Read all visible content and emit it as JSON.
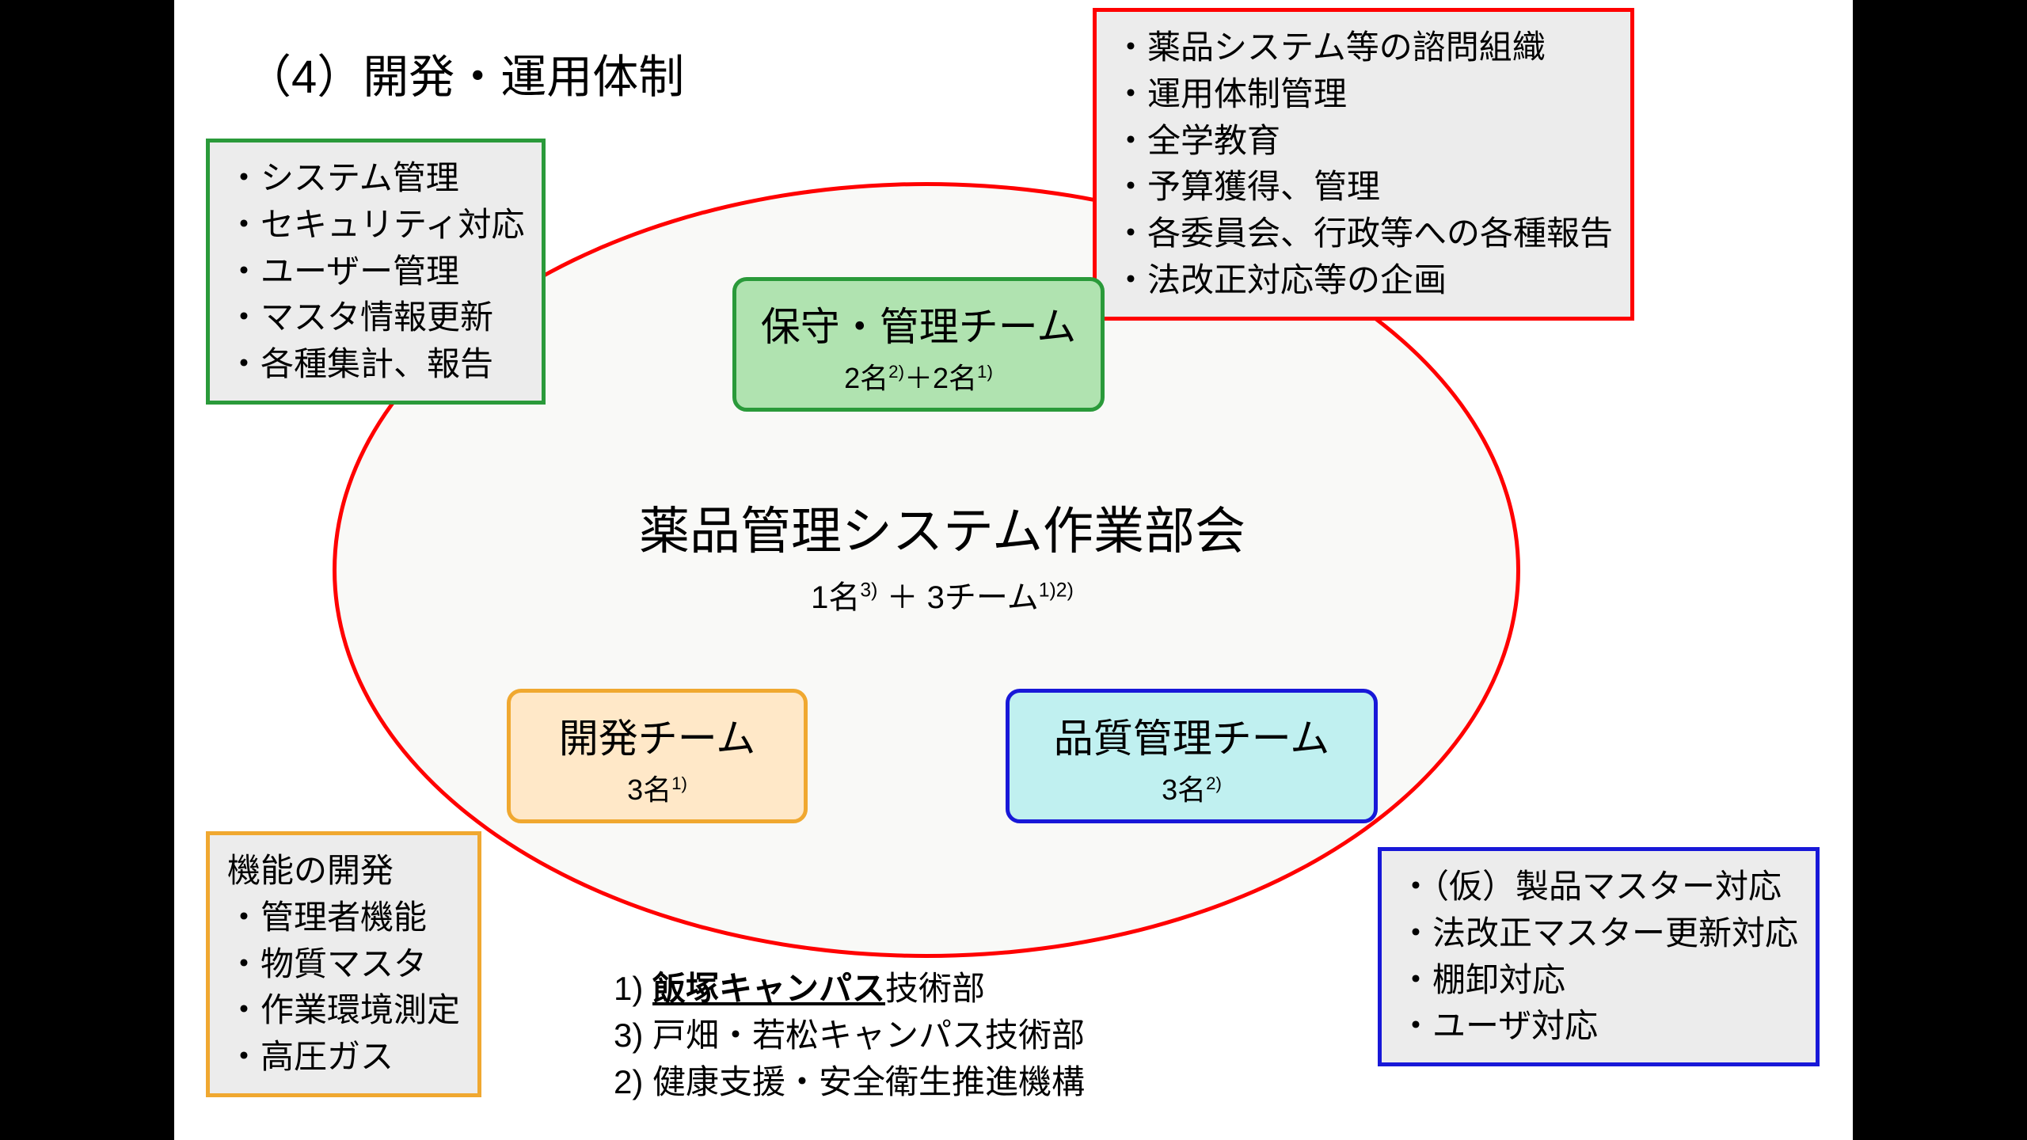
{
  "title": "（4）開発・運用体制",
  "ellipse": {
    "border_color": "#ff0000",
    "background": "#f9f9f7"
  },
  "center": {
    "main": "薬品管理システム作業部会",
    "sub_html": "1名<sup>3)</sup> ＋ 3チーム<sup>1)2)</sup>"
  },
  "teams": {
    "green": {
      "title": "保守・管理チーム",
      "sub_html": "2名<sup>2)</sup>＋2名<sup>1)</sup>",
      "fill": "#b0e3b0",
      "border": "#2a9a3a"
    },
    "orange": {
      "title": "開発チーム",
      "sub_html": "3名<sup>1)</sup>",
      "fill": "#ffe8c8",
      "border": "#f0a830"
    },
    "blue": {
      "title": "品質管理チーム",
      "sub_html": "3名<sup>2)</sup>",
      "fill": "#c0f0f0",
      "border": "#1818d8"
    }
  },
  "callouts": {
    "green": {
      "border": "#2a9a3a",
      "items": [
        "・システム管理",
        "・セキュリティ対応",
        "・ユーザー管理",
        "・マスタ情報更新",
        "・各種集計、報告"
      ]
    },
    "red": {
      "border": "#ff0000",
      "items": [
        "・薬品システム等の諮問組織",
        "・運用体制管理",
        "・全学教育",
        "・予算獲得、管理",
        "・各委員会、行政等への各種報告",
        "・法改正対応等の企画"
      ]
    },
    "orange": {
      "border": "#f0a830",
      "items": [
        "機能の開発",
        "・管理者機能",
        "・物質マスタ",
        "・作業環境測定",
        "・高圧ガス"
      ]
    },
    "blue": {
      "border": "#1818d8",
      "items": [
        "・（仮）製品マスター対応",
        "・法改正マスター更新対応",
        "・棚卸対応",
        "・ユーザ対応"
      ]
    }
  },
  "footnotes": {
    "f1_label": "1) ",
    "f1_underline": "飯塚キャンパス",
    "f1_rest": "技術部",
    "f3": "3) 戸畑・若松キャンパス技術部",
    "f2": "2) 健康支援・安全衛生推進機構"
  },
  "colors": {
    "slide_bg": "#ffffff",
    "letterbox": "#000000",
    "callout_bg": "#ececec",
    "text": "#000000"
  }
}
